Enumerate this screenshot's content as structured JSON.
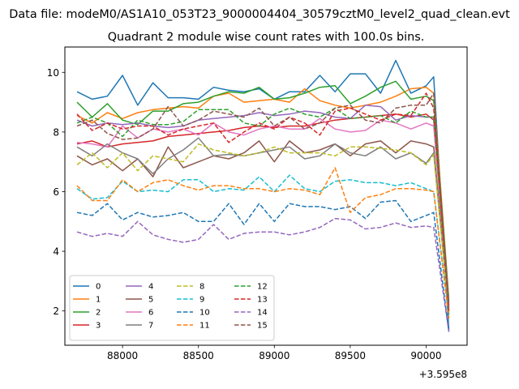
{
  "chart_data": {
    "type": "line",
    "suptitle": "Data file: modeM0/AS1A10_053T23_9000004404_30579cztM0_level2_quad_clean.evt",
    "title": "Quadrant 2 module wise count rates with 100.0s bins.",
    "xlabel": "",
    "ylabel": "",
    "x_offset_label": "+3.595e8",
    "xlim": [
      87620,
      90270
    ],
    "ylim": [
      0.85,
      10.85
    ],
    "xticks": [
      88000,
      88500,
      89000,
      89500,
      90000
    ],
    "yticks": [
      2,
      4,
      6,
      8,
      10
    ],
    "legend_location": "lower-left",
    "legend_columns": 4,
    "x": [
      87700,
      87800,
      87900,
      88000,
      88100,
      88200,
      88300,
      88400,
      88500,
      88600,
      88700,
      88800,
      88900,
      89000,
      89100,
      89200,
      89300,
      89400,
      89500,
      89600,
      89700,
      89800,
      89900,
      90000,
      90050,
      90150
    ],
    "series": [
      {
        "name": "0",
        "color": "#1f77b4",
        "dash": "solid",
        "values": [
          9.35,
          9.1,
          9.2,
          9.9,
          8.9,
          9.65,
          9.15,
          9.15,
          9.1,
          9.5,
          9.4,
          9.35,
          9.45,
          9.1,
          9.35,
          9.35,
          9.9,
          9.35,
          9.95,
          9.95,
          9.3,
          10.4,
          9.3,
          9.55,
          9.85,
          1.35
        ]
      },
      {
        "name": "1",
        "color": "#ff7f0e",
        "dash": "solid",
        "values": [
          8.55,
          8.3,
          8.65,
          8.45,
          8.65,
          8.75,
          8.8,
          8.85,
          8.8,
          9.2,
          9.3,
          9.0,
          9.05,
          9.1,
          9.0,
          9.45,
          9.05,
          8.9,
          8.8,
          8.9,
          9.0,
          9.2,
          9.45,
          9.5,
          9.3,
          2.4
        ]
      },
      {
        "name": "2",
        "color": "#2ca02c",
        "dash": "solid",
        "values": [
          9.0,
          8.5,
          8.95,
          8.4,
          8.25,
          8.7,
          8.7,
          8.95,
          9.0,
          9.2,
          9.35,
          9.3,
          9.5,
          9.1,
          9.15,
          9.3,
          9.5,
          9.55,
          8.95,
          9.2,
          9.5,
          9.7,
          9.1,
          9.2,
          9.05,
          2.35
        ]
      },
      {
        "name": "3",
        "color": "#d62728",
        "dash": "solid",
        "values": [
          7.6,
          7.7,
          7.5,
          7.6,
          7.65,
          7.7,
          7.85,
          7.9,
          7.95,
          8.0,
          8.05,
          8.15,
          8.2,
          8.15,
          8.2,
          8.2,
          8.3,
          8.4,
          8.45,
          8.5,
          8.55,
          8.6,
          8.5,
          8.6,
          8.4,
          2.2
        ]
      },
      {
        "name": "4",
        "color": "#9467bd",
        "dash": "solid",
        "values": [
          8.4,
          8.2,
          8.3,
          8.25,
          8.3,
          8.2,
          8.15,
          8.2,
          8.4,
          8.45,
          8.5,
          8.55,
          8.65,
          8.55,
          8.6,
          8.7,
          8.65,
          8.5,
          8.45,
          8.9,
          8.85,
          8.4,
          8.55,
          8.5,
          8.5,
          2.3
        ]
      },
      {
        "name": "5",
        "color": "#8c564b",
        "dash": "solid",
        "values": [
          7.2,
          6.9,
          7.1,
          6.7,
          7.1,
          6.5,
          7.5,
          6.8,
          7.0,
          7.2,
          7.1,
          7.3,
          7.7,
          7.0,
          7.7,
          7.3,
          7.4,
          7.6,
          7.2,
          7.6,
          7.7,
          7.3,
          7.7,
          7.6,
          7.5,
          2.1
        ]
      },
      {
        "name": "6",
        "color": "#e377c2",
        "dash": "solid",
        "values": [
          7.65,
          7.6,
          7.5,
          8.2,
          7.8,
          8.1,
          8.0,
          8.1,
          7.9,
          8.3,
          8.0,
          7.9,
          8.1,
          8.2,
          8.1,
          8.1,
          8.45,
          8.1,
          8.0,
          8.05,
          8.4,
          8.3,
          8.1,
          8.3,
          8.2,
          2.2
        ]
      },
      {
        "name": "7",
        "color": "#7f7f7f",
        "dash": "solid",
        "values": [
          7.5,
          7.2,
          7.6,
          7.3,
          7.1,
          6.6,
          7.1,
          7.4,
          7.8,
          7.2,
          7.25,
          7.2,
          7.3,
          7.4,
          7.5,
          7.1,
          7.2,
          7.6,
          7.3,
          7.2,
          7.5,
          7.1,
          7.3,
          6.95,
          7.3,
          1.9
        ]
      },
      {
        "name": "8",
        "color": "#bcbd22",
        "dash": "dashed",
        "values": [
          6.9,
          7.3,
          6.8,
          7.3,
          6.7,
          7.2,
          7.1,
          7.0,
          7.6,
          7.4,
          7.3,
          7.2,
          7.3,
          7.5,
          7.3,
          7.3,
          7.3,
          7.2,
          7.5,
          7.5,
          7.45,
          7.4,
          7.3,
          6.9,
          7.25,
          1.95
        ]
      },
      {
        "name": "9",
        "color": "#17becf",
        "dash": "dashed",
        "values": [
          6.1,
          5.75,
          5.8,
          6.35,
          6.0,
          6.05,
          6.0,
          6.4,
          6.4,
          6.0,
          6.1,
          6.05,
          6.5,
          6.0,
          6.55,
          6.1,
          6.0,
          6.35,
          6.4,
          6.3,
          6.3,
          6.2,
          6.3,
          6.1,
          6.0,
          1.85
        ]
      },
      {
        "name": "10",
        "color": "#1f77b4",
        "dash": "dashed",
        "values": [
          5.3,
          5.2,
          5.6,
          5.05,
          5.3,
          5.15,
          5.2,
          5.3,
          5.0,
          5.0,
          5.6,
          4.9,
          5.6,
          5.0,
          5.6,
          5.5,
          5.5,
          5.4,
          5.5,
          5.1,
          5.65,
          5.7,
          5.0,
          5.2,
          5.3,
          1.3
        ]
      },
      {
        "name": "11",
        "color": "#ff7f0e",
        "dash": "dashed",
        "values": [
          6.2,
          5.7,
          5.7,
          6.4,
          6.0,
          6.3,
          6.4,
          6.2,
          6.05,
          6.2,
          6.2,
          6.1,
          6.1,
          6.0,
          6.1,
          6.05,
          5.9,
          6.8,
          5.3,
          5.8,
          5.9,
          6.1,
          6.1,
          6.05,
          6.0,
          1.75
        ]
      },
      {
        "name": "12",
        "color": "#2ca02c",
        "dash": "dashed",
        "values": [
          8.3,
          8.5,
          8.3,
          7.85,
          8.4,
          8.25,
          8.25,
          8.35,
          8.75,
          8.75,
          8.75,
          8.3,
          8.2,
          8.6,
          8.8,
          8.6,
          8.5,
          8.8,
          8.45,
          8.5,
          8.55,
          8.3,
          8.7,
          8.5,
          8.5,
          2.2
        ]
      },
      {
        "name": "13",
        "color": "#d62728",
        "dash": "dashed",
        "values": [
          8.6,
          8.05,
          8.3,
          8.1,
          8.2,
          8.2,
          7.9,
          8.1,
          8.2,
          8.3,
          7.65,
          8.0,
          8.3,
          8.1,
          8.5,
          8.3,
          7.9,
          8.7,
          8.8,
          8.6,
          8.4,
          8.6,
          8.55,
          9.3,
          8.8,
          2.0
        ]
      },
      {
        "name": "14",
        "color": "#9467bd",
        "dash": "dashed",
        "values": [
          4.65,
          4.5,
          4.6,
          4.5,
          5.0,
          4.55,
          4.4,
          4.3,
          4.4,
          4.9,
          4.4,
          4.6,
          4.65,
          4.65,
          4.55,
          4.65,
          4.8,
          5.1,
          5.05,
          4.75,
          4.8,
          4.95,
          4.8,
          4.85,
          4.8,
          1.3
        ]
      },
      {
        "name": "15",
        "color": "#8c564b",
        "dash": "dashed",
        "values": [
          8.2,
          8.4,
          7.95,
          7.75,
          7.8,
          8.1,
          8.85,
          8.2,
          8.4,
          8.7,
          8.6,
          8.5,
          8.8,
          8.2,
          8.5,
          8.1,
          8.3,
          8.8,
          8.9,
          8.4,
          8.3,
          8.8,
          8.9,
          8.9,
          9.3,
          2.0
        ]
      }
    ]
  }
}
